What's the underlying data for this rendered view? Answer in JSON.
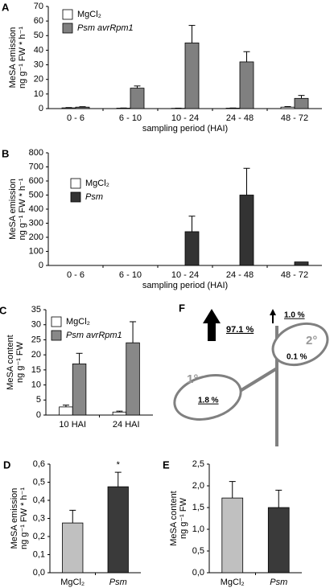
{
  "chart_data": [
    {
      "type": "bar",
      "panel": "A",
      "ylabel": [
        "MeSA emission",
        "ng g⁻¹ FW * h⁻¹"
      ],
      "xlabel": "sampling period (HAI)",
      "categories": [
        "0 - 6",
        "6 - 10",
        "10 - 24",
        "24 - 48",
        "48 - 72"
      ],
      "series": [
        {
          "name": "MgCl₂",
          "color": "#ffffff",
          "values": [
            0.5,
            0.3,
            0.2,
            0.3,
            1
          ],
          "errors": [
            0.2,
            0.1,
            0.1,
            0.1,
            0.4
          ]
        },
        {
          "name": "Psm avrRpm1",
          "color": "#808080",
          "values": [
            1,
            14,
            45,
            32,
            7
          ],
          "errors": [
            0.3,
            1.5,
            12,
            7,
            2
          ]
        }
      ],
      "ylim": [
        0,
        70
      ],
      "yticks": [
        0,
        10,
        20,
        30,
        40,
        50,
        60,
        70
      ],
      "legend": "upper left"
    },
    {
      "type": "bar",
      "panel": "B",
      "ylabel": [
        "MeSA emission",
        "ng g⁻¹ FW * h⁻¹"
      ],
      "xlabel": "sampling period (HAI)",
      "categories": [
        "0 - 6",
        "6 - 10",
        "10 - 24",
        "24 - 48",
        "48 - 72"
      ],
      "series": [
        {
          "name": "MgCl₂",
          "color": "#ffffff",
          "values": [
            0,
            0,
            0,
            0,
            0
          ],
          "errors": [
            0,
            0,
            0,
            0,
            0
          ]
        },
        {
          "name": "Psm",
          "color": "#333333",
          "values": [
            0,
            0,
            240,
            500,
            25
          ],
          "errors": [
            0,
            0,
            110,
            190,
            0
          ]
        }
      ],
      "ylim": [
        0,
        800
      ],
      "yticks": [
        0,
        100,
        200,
        300,
        400,
        500,
        600,
        700,
        800
      ],
      "legend": "upper left"
    },
    {
      "type": "bar",
      "panel": "C",
      "ylabel": [
        "MeSA content",
        "ng g⁻¹ FW"
      ],
      "categories": [
        "10 HAI",
        "24 HAI"
      ],
      "series": [
        {
          "name": "MgCl₂",
          "color": "#ffffff",
          "values": [
            2.7,
            1
          ],
          "errors": [
            0.6,
            0.3
          ]
        },
        {
          "name": "Psm avrRpm1",
          "color": "#888888",
          "values": [
            17,
            24
          ],
          "errors": [
            3.5,
            7
          ]
        }
      ],
      "ylim": [
        0,
        35
      ],
      "yticks": [
        0,
        5,
        10,
        15,
        20,
        25,
        30,
        35
      ],
      "legend": "upper left"
    },
    {
      "type": "bar",
      "panel": "D",
      "ylabel": [
        "MeSA emission",
        "ng g⁻¹ FW * h⁻¹"
      ],
      "categories": [
        "MgCl₂",
        "Psm"
      ],
      "values": [
        0.275,
        0.475
      ],
      "errors": [
        0.07,
        0.08
      ],
      "colors": [
        "#c0c0c0",
        "#3a3a3a"
      ],
      "annotation": "*",
      "ylim": [
        0,
        0.6
      ],
      "yticks": [
        {
          "value": 0,
          "label": "0,0"
        },
        {
          "value": 0.1,
          "label": "0,1"
        },
        {
          "value": 0.2,
          "label": "0,2"
        },
        {
          "value": 0.3,
          "label": "0,3"
        },
        {
          "value": 0.4,
          "label": "0,4"
        },
        {
          "value": 0.5,
          "label": "0,5"
        },
        {
          "value": 0.6,
          "label": "0,6"
        }
      ]
    },
    {
      "type": "bar",
      "panel": "E",
      "ylabel": [
        "MeSA content",
        "ng g⁻¹ FW"
      ],
      "categories": [
        "MgCl₂",
        "Psm"
      ],
      "values": [
        1.72,
        1.5
      ],
      "errors": [
        0.38,
        0.4
      ],
      "colors": [
        "#c0c0c0",
        "#3a3a3a"
      ],
      "ylim": [
        0,
        2.5
      ],
      "yticks": [
        {
          "value": 0,
          "label": "0,0"
        },
        {
          "value": 0.5,
          "label": "0,5"
        },
        {
          "value": 1,
          "label": "1,0"
        },
        {
          "value": 1.5,
          "label": "1,5"
        },
        {
          "value": 2,
          "label": "2,0"
        },
        {
          "value": 2.5,
          "label": "2,5"
        }
      ]
    }
  ],
  "diagram": {
    "panel": "F",
    "up_large": "97.1 %",
    "up_small": "1.0 %",
    "leaf1": "1°",
    "leaf1_value": "1.8 %",
    "leaf2": "2°",
    "leaf2_value": "0.1 %"
  }
}
